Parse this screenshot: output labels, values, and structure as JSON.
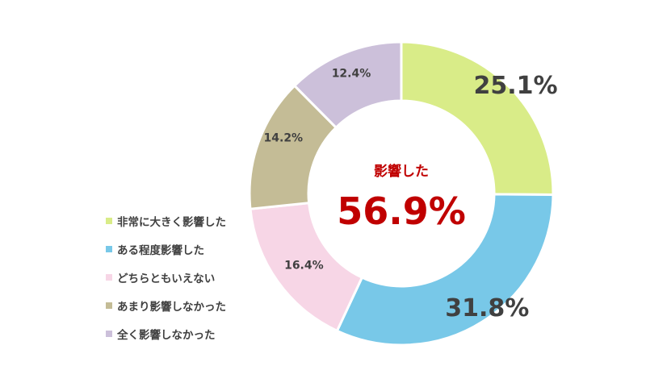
{
  "chart_data": {
    "type": "pie",
    "variant": "donut",
    "title": "",
    "center_label": "影響した",
    "center_value": "56.9%",
    "center_color": "#c00000",
    "categories": [
      "非常に大きく影響した",
      "ある程度影響した",
      "どちらともいえない",
      "あまり影響しなかった",
      "全く影響しなかった"
    ],
    "values": [
      25.1,
      31.8,
      16.4,
      14.2,
      12.4
    ],
    "value_labels": [
      "25.1%",
      "31.8%",
      "16.4%",
      "14.2%",
      "12.4%"
    ],
    "colors": [
      "#d9ec88",
      "#78c8e8",
      "#f7d6e6",
      "#c4bc96",
      "#ccc0da"
    ],
    "legend_position": "left-bottom",
    "start_angle_deg": 0,
    "direction": "clockwise"
  },
  "legend": {
    "items": [
      {
        "label": "非常に大きく影響した",
        "color": "#d9ec88"
      },
      {
        "label": "ある程度影響した",
        "color": "#78c8e8"
      },
      {
        "label": "どちらともいえない",
        "color": "#f7d6e6"
      },
      {
        "label": "あまり影響しなかった",
        "color": "#c4bc96"
      },
      {
        "label": "全く影響しなかった",
        "color": "#ccc0da"
      }
    ]
  }
}
